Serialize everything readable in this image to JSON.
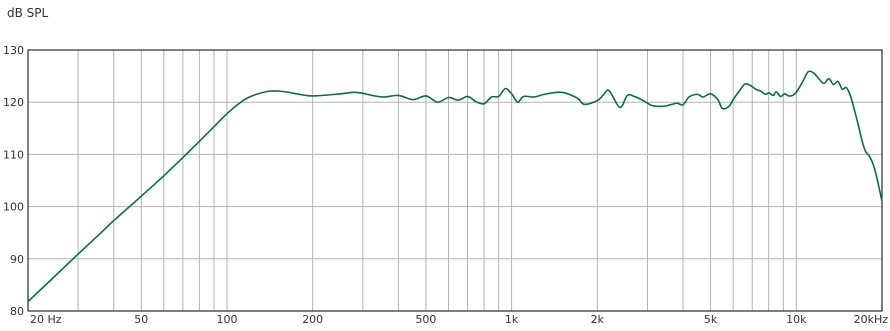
{
  "chart_data": {
    "type": "line",
    "title": "",
    "ylabel": "dB SPL",
    "xlabel": "",
    "x_scale": "log",
    "xlim": [
      20,
      20000
    ],
    "ylim": [
      80,
      130
    ],
    "grid": true,
    "legend": "none",
    "line_color": "#0b6b4c",
    "grid_color": "#b4b4b4",
    "x_ticks": [
      {
        "value": 20,
        "label": "20 Hz"
      },
      {
        "value": 50,
        "label": "50"
      },
      {
        "value": 100,
        "label": "100"
      },
      {
        "value": 200,
        "label": "200"
      },
      {
        "value": 500,
        "label": "500"
      },
      {
        "value": 1000,
        "label": "1k"
      },
      {
        "value": 2000,
        "label": "2k"
      },
      {
        "value": 5000,
        "label": "5k"
      },
      {
        "value": 10000,
        "label": "10k"
      },
      {
        "value": 20000,
        "label": "20kHz"
      }
    ],
    "x_grid": [
      30,
      40,
      50,
      60,
      70,
      80,
      90,
      100,
      200,
      300,
      400,
      500,
      600,
      700,
      800,
      900,
      1000,
      2000,
      3000,
      4000,
      5000,
      6000,
      7000,
      8000,
      9000,
      10000
    ],
    "y_ticks": [
      80,
      90,
      100,
      110,
      120,
      130
    ],
    "series": [
      {
        "name": "",
        "x": [
          20,
          25,
          30,
          35,
          40,
          50,
          60,
          70,
          80,
          90,
          100,
          110,
          120,
          140,
          160,
          180,
          200,
          250,
          280,
          300,
          350,
          400,
          450,
          500,
          550,
          600,
          650,
          700,
          750,
          800,
          850,
          900,
          950,
          1000,
          1050,
          1100,
          1200,
          1300,
          1500,
          1700,
          1800,
          2000,
          2100,
          2200,
          2400,
          2550,
          2700,
          2900,
          3100,
          3300,
          3500,
          3800,
          4000,
          4200,
          4500,
          4700,
          5000,
          5300,
          5500,
          5800,
          6000,
          6300,
          6600,
          6900,
          7200,
          7500,
          7800,
          8000,
          8300,
          8500,
          8800,
          9100,
          9400,
          9700,
          10000,
          10500,
          11000,
          11500,
          12000,
          12500,
          13000,
          13500,
          14000,
          14500,
          15000,
          15500,
          16000,
          16500,
          17000,
          17500,
          18000,
          18500,
          19000,
          19500,
          20000
        ],
        "y": [
          81.8,
          86.8,
          90.9,
          94.3,
          97.3,
          102.0,
          105.9,
          109.4,
          112.5,
          115.3,
          117.8,
          119.7,
          121.0,
          122.1,
          122.0,
          121.5,
          121.2,
          121.6,
          121.9,
          121.7,
          121.0,
          121.3,
          120.5,
          121.2,
          120.0,
          120.9,
          120.4,
          121.1,
          120.1,
          119.7,
          121.0,
          121.1,
          122.6,
          121.6,
          120.0,
          121.1,
          121.0,
          121.5,
          121.9,
          120.8,
          119.6,
          120.3,
          121.4,
          122.2,
          119.0,
          121.3,
          121.1,
          120.3,
          119.4,
          119.2,
          119.3,
          119.8,
          119.5,
          121.0,
          121.5,
          121.0,
          121.6,
          120.5,
          118.8,
          119.2,
          120.5,
          122.1,
          123.5,
          123.2,
          122.5,
          122.1,
          121.5,
          121.8,
          121.3,
          122.0,
          121.1,
          121.6,
          121.2,
          121.3,
          121.9,
          123.8,
          125.8,
          125.6,
          124.5,
          123.6,
          124.5,
          123.4,
          124.0,
          122.5,
          122.8,
          121.2,
          118.5,
          115.7,
          112.7,
          110.6,
          109.8,
          108.5,
          106.5,
          103.8,
          101.0
        ]
      }
    ]
  }
}
